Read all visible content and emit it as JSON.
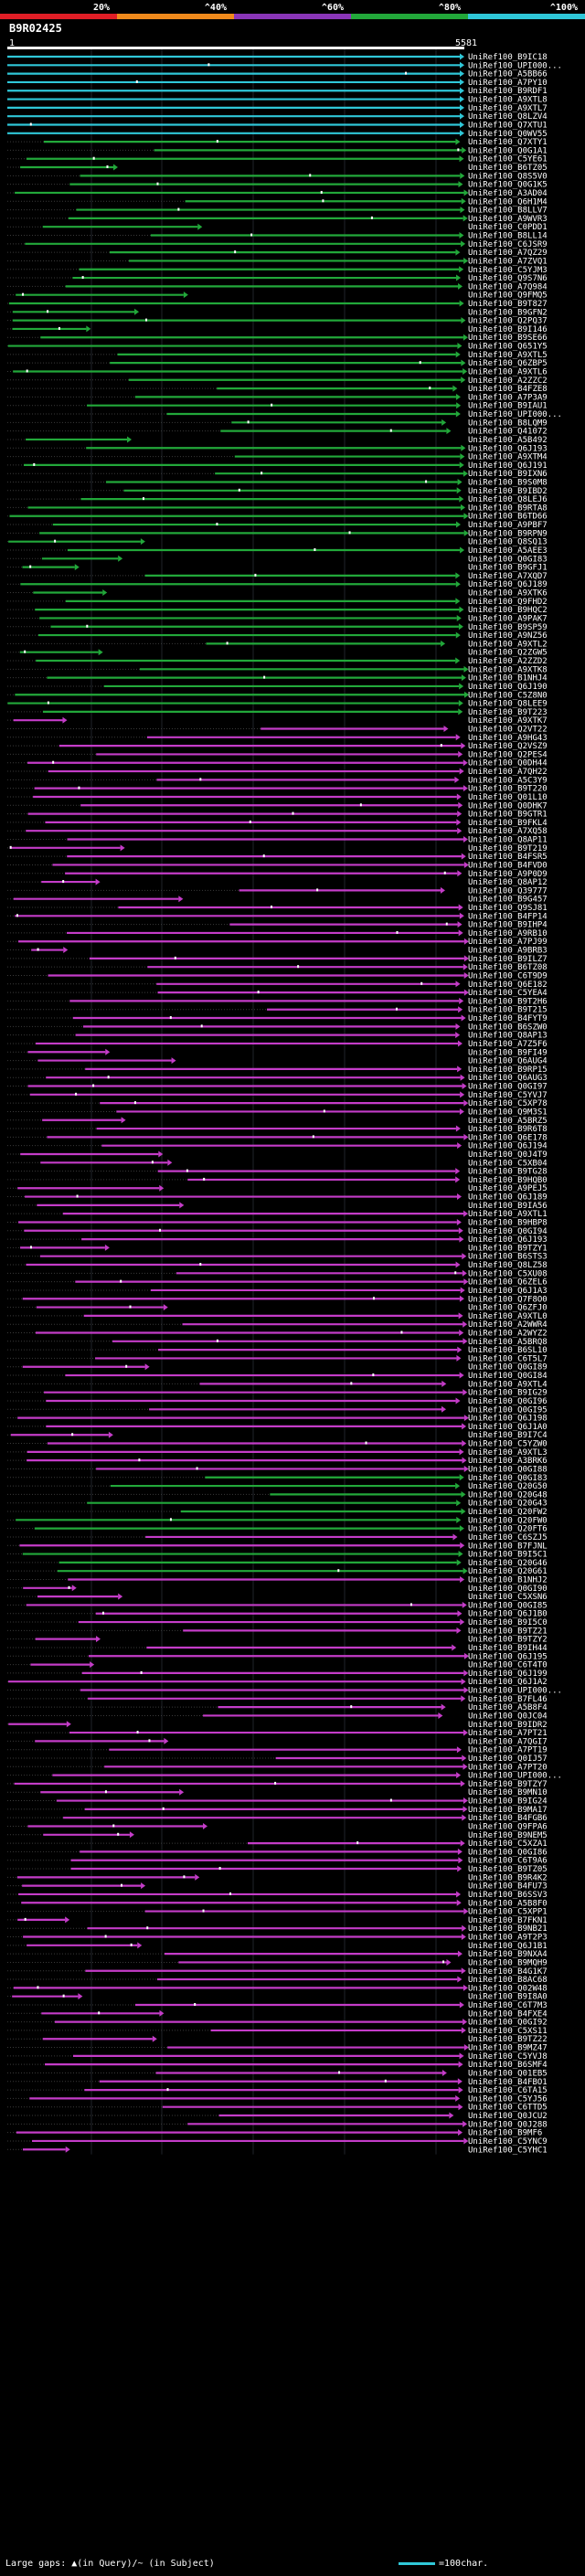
{
  "legend": {
    "segments": [
      {
        "label": "20%",
        "color": "#e01e26"
      },
      {
        "label": "^40%",
        "color": "#f08a1c"
      },
      {
        "label": "^60%",
        "color": "#8a36b8"
      },
      {
        "label": "^80%",
        "color": "#22a83a"
      },
      {
        "label": "^100%",
        "color": "#2fc7d8"
      }
    ]
  },
  "query_id": "B9R02425",
  "axis": {
    "start": "1",
    "end": "5581"
  },
  "colors": {
    "cyan": "#2fc7d8",
    "green": "#22a83a",
    "magenta": "#c43cc8",
    "query": "#ffffff"
  },
  "hits": [
    {
      "label": "UniRef100_B9IC18",
      "c": "cyan"
    },
    {
      "label": "UniRef100_UPI000...",
      "c": "cyan"
    },
    {
      "label": "UniRef100_A5BB66",
      "c": "cyan"
    },
    {
      "label": "UniRef100_A7PY10",
      "c": "cyan"
    },
    {
      "label": "UniRef100_B9RDF1",
      "c": "cyan"
    },
    {
      "label": "UniRef100_A9XTL8",
      "c": "cyan"
    },
    {
      "label": "UniRef100_A9XTL7",
      "c": "cyan"
    },
    {
      "label": "UniRef100_Q8LZV4",
      "c": "cyan"
    },
    {
      "label": "UniRef100_Q7XTU1",
      "c": "cyan"
    },
    {
      "label": "UniRef100_Q0WV55",
      "c": "cyan"
    },
    {
      "label": "UniRef100_Q7XTY1",
      "c": "green"
    },
    {
      "label": "UniRef100_Q0G1A1",
      "c": "green"
    },
    {
      "label": "UniRef100_C5YE61",
      "c": "green"
    },
    {
      "label": "UniRef100_B6TZ05",
      "c": "green"
    },
    {
      "label": "UniRef100_Q8S5V0",
      "c": "green"
    },
    {
      "label": "UniRef100_Q0G1K5",
      "c": "green"
    },
    {
      "label": "UniRef100_A3AD04",
      "c": "green"
    },
    {
      "label": "UniRef100_Q6H1M4",
      "c": "green"
    },
    {
      "label": "UniRef100_B8LLV7",
      "c": "green"
    },
    {
      "label": "UniRef100_A9WVR3",
      "c": "green"
    },
    {
      "label": "UniRef100_C0PDD1",
      "c": "green"
    },
    {
      "label": "UniRef100_B8LL14",
      "c": "green"
    },
    {
      "label": "UniRef100_C6JSR9",
      "c": "green"
    },
    {
      "label": "UniRef100_A7QZ29",
      "c": "green"
    },
    {
      "label": "UniRef100_A7ZVQ1",
      "c": "green"
    },
    {
      "label": "UniRef100_C5YJM3",
      "c": "green"
    },
    {
      "label": "UniRef100_Q9S7N6",
      "c": "green"
    },
    {
      "label": "UniRef100_A7Q984",
      "c": "green"
    },
    {
      "label": "UniRef100_Q9FMQ5",
      "c": "green"
    },
    {
      "label": "UniRef100_B9T827",
      "c": "green"
    },
    {
      "label": "UniRef100_B9GFN2",
      "c": "green"
    },
    {
      "label": "UniRef100_Q2PQ37",
      "c": "green"
    },
    {
      "label": "UniRef100_B9I146",
      "c": "green"
    },
    {
      "label": "UniRef100_B9SE66",
      "c": "green"
    },
    {
      "label": "UniRef100_Q651Y5",
      "c": "green"
    },
    {
      "label": "UniRef100_A9XTL5",
      "c": "green"
    },
    {
      "label": "UniRef100_Q6ZBP5",
      "c": "green"
    },
    {
      "label": "UniRef100_A9XTL6",
      "c": "green"
    },
    {
      "label": "UniRef100_A2ZZC2",
      "c": "green"
    },
    {
      "label": "UniRef100_B4FZE8",
      "c": "green"
    },
    {
      "label": "UniRef100_A7P3A9",
      "c": "green"
    },
    {
      "label": "UniRef100_B9IAU1",
      "c": "green"
    },
    {
      "label": "UniRef100_UPI000...",
      "c": "green"
    },
    {
      "label": "UniRef100_B8LQM9",
      "c": "green"
    },
    {
      "label": "UniRef100_Q41072",
      "c": "green"
    },
    {
      "label": "UniRef100_A5B492",
      "c": "green"
    },
    {
      "label": "UniRef100_Q6J193",
      "c": "green"
    },
    {
      "label": "UniRef100_A9XTM4",
      "c": "green"
    },
    {
      "label": "UniRef100_Q6J191",
      "c": "green"
    },
    {
      "label": "UniRef100_B9IXN6",
      "c": "green"
    },
    {
      "label": "UniRef100_B9S0M8",
      "c": "green"
    },
    {
      "label": "UniRef100_B9IBD2",
      "c": "green"
    },
    {
      "label": "UniRef100_Q8LEJ6",
      "c": "green"
    },
    {
      "label": "UniRef100_B9RTA8",
      "c": "green"
    },
    {
      "label": "UniRef100_B6TD66",
      "c": "green"
    },
    {
      "label": "UniRef100_A9PBF7",
      "c": "green"
    },
    {
      "label": "UniRef100_B9RPN9",
      "c": "green"
    },
    {
      "label": "UniRef100_Q8SQ13",
      "c": "green"
    },
    {
      "label": "UniRef100_A5AEE3",
      "c": "green"
    },
    {
      "label": "UniRef100_Q0GI83",
      "c": "green"
    },
    {
      "label": "UniRef100_B9GFJ1",
      "c": "green"
    },
    {
      "label": "UniRef100_A7XQD7",
      "c": "green"
    },
    {
      "label": "UniRef100_Q6J189",
      "c": "green"
    },
    {
      "label": "UniRef100_A9XTK6",
      "c": "green"
    },
    {
      "label": "UniRef100_Q9FHD2",
      "c": "green"
    },
    {
      "label": "UniRef100_B9HQC2",
      "c": "green"
    },
    {
      "label": "UniRef100_A9PAK7",
      "c": "green"
    },
    {
      "label": "UniRef100_B9SP59",
      "c": "green"
    },
    {
      "label": "UniRef100_A9NZ56",
      "c": "green"
    },
    {
      "label": "UniRef100_A9XTL2",
      "c": "green"
    },
    {
      "label": "UniRef100_Q2ZGW5",
      "c": "green"
    },
    {
      "label": "UniRef100_A2ZZD2",
      "c": "green"
    },
    {
      "label": "UniRef100_A9XTK8",
      "c": "green"
    },
    {
      "label": "UniRef100_B1NHJ4",
      "c": "green"
    },
    {
      "label": "UniRef100_Q6J190",
      "c": "green"
    },
    {
      "label": "UniRef100_C5Z8N0",
      "c": "green"
    },
    {
      "label": "UniRef100_Q8LEE9",
      "c": "green"
    },
    {
      "label": "UniRef100_B9T223",
      "c": "green"
    },
    {
      "label": "UniRef100_A9XTK7",
      "c": "magenta"
    },
    {
      "label": "UniRef100_Q2VT22",
      "c": "magenta"
    },
    {
      "label": "UniRef100_A9HG43",
      "c": "magenta"
    },
    {
      "label": "UniRef100_Q2VSZ9",
      "c": "magenta"
    },
    {
      "label": "UniRef100_Q2PES4",
      "c": "magenta"
    },
    {
      "label": "UniRef100_Q0DH44",
      "c": "magenta"
    },
    {
      "label": "UniRef100_A7QH22",
      "c": "magenta"
    },
    {
      "label": "UniRef100_A5C3Y9",
      "c": "magenta"
    },
    {
      "label": "UniRef100_B9T220",
      "c": "magenta"
    },
    {
      "label": "UniRef100_Q01L10",
      "c": "magenta"
    },
    {
      "label": "UniRef100_Q0DHK7",
      "c": "magenta"
    },
    {
      "label": "UniRef100_B9GTR1",
      "c": "magenta"
    },
    {
      "label": "UniRef100_B9FKL4",
      "c": "magenta"
    },
    {
      "label": "UniRef100_A7XQ58",
      "c": "magenta"
    },
    {
      "label": "UniRef100_Q8AP11",
      "c": "magenta"
    },
    {
      "label": "UniRef100_B9T219",
      "c": "magenta"
    },
    {
      "label": "UniRef100_B4FSR5",
      "c": "magenta"
    },
    {
      "label": "UniRef100_B4FVD0",
      "c": "magenta"
    },
    {
      "label": "UniRef100_A9P0D9",
      "c": "magenta"
    },
    {
      "label": "UniRef100_Q8AP12",
      "c": "magenta"
    },
    {
      "label": "UniRef100_Q39777",
      "c": "magenta"
    },
    {
      "label": "UniRef100_B9G457",
      "c": "magenta"
    },
    {
      "label": "UniRef100_Q9SJ81",
      "c": "magenta"
    },
    {
      "label": "UniRef100_B4FP14",
      "c": "magenta"
    },
    {
      "label": "UniRef100_B9IHP4",
      "c": "magenta"
    },
    {
      "label": "UniRef100_A9RB10",
      "c": "magenta"
    },
    {
      "label": "UniRef100_A7PJ99",
      "c": "magenta"
    },
    {
      "label": "UniRef100_A9BRB3",
      "c": "magenta"
    },
    {
      "label": "UniRef100_B9ILZ7",
      "c": "magenta"
    },
    {
      "label": "UniRef100_B6TZ08",
      "c": "magenta"
    },
    {
      "label": "UniRef100_C6T9D9",
      "c": "magenta"
    },
    {
      "label": "UniRef100_Q6E182",
      "c": "magenta"
    },
    {
      "label": "UniRef100_C5YEA4",
      "c": "magenta"
    },
    {
      "label": "UniRef100_B9T2H6",
      "c": "magenta"
    },
    {
      "label": "UniRef100_B9T215",
      "c": "magenta"
    },
    {
      "label": "UniRef100_B4FYT9",
      "c": "magenta"
    },
    {
      "label": "UniRef100_B6SZW0",
      "c": "magenta"
    },
    {
      "label": "UniRef100_Q8AP13",
      "c": "magenta"
    },
    {
      "label": "UniRef100_A7Z5F6",
      "c": "magenta"
    },
    {
      "label": "UniRef100_B9FI49",
      "c": "magenta"
    },
    {
      "label": "UniRef100_Q6AUG4",
      "c": "magenta"
    },
    {
      "label": "UniRef100_B9RP15",
      "c": "magenta"
    },
    {
      "label": "UniRef100_Q6AUG3",
      "c": "magenta"
    },
    {
      "label": "UniRef100_Q0GI97",
      "c": "magenta"
    },
    {
      "label": "UniRef100_C5YVJ7",
      "c": "magenta"
    },
    {
      "label": "UniRef100_C5XP78",
      "c": "magenta"
    },
    {
      "label": "UniRef100_Q9M3S1",
      "c": "magenta"
    },
    {
      "label": "UniRef100_A5BRZ5",
      "c": "magenta"
    },
    {
      "label": "UniRef100_B9R6T8",
      "c": "magenta"
    },
    {
      "label": "UniRef100_Q6E178",
      "c": "magenta"
    },
    {
      "label": "UniRef100_Q6J194",
      "c": "magenta"
    },
    {
      "label": "UniRef100_Q0J4T9",
      "c": "magenta"
    },
    {
      "label": "UniRef100_C5XB04",
      "c": "magenta"
    },
    {
      "label": "UniRef100_B9TG28",
      "c": "magenta"
    },
    {
      "label": "UniRef100_B9HQB0",
      "c": "magenta"
    },
    {
      "label": "UniRef100_A9PEJ5",
      "c": "magenta"
    },
    {
      "label": "UniRef100_Q6J189",
      "c": "magenta"
    },
    {
      "label": "UniRef100_B9IA56",
      "c": "magenta"
    },
    {
      "label": "UniRef100_A9XTL1",
      "c": "magenta"
    },
    {
      "label": "UniRef100_B9HBP8",
      "c": "magenta"
    },
    {
      "label": "UniRef100_Q0GI94",
      "c": "magenta"
    },
    {
      "label": "UniRef100_Q6J193",
      "c": "magenta"
    },
    {
      "label": "UniRef100_B9TZY1",
      "c": "magenta"
    },
    {
      "label": "UniRef100_B6STS3",
      "c": "magenta"
    },
    {
      "label": "UniRef100_Q8LZ58",
      "c": "magenta"
    },
    {
      "label": "UniRef100_C5XU08",
      "c": "magenta"
    },
    {
      "label": "UniRef100_Q6ZEL6",
      "c": "magenta"
    },
    {
      "label": "UniRef100_Q6J1A3",
      "c": "magenta"
    },
    {
      "label": "UniRef100_Q7F8O0",
      "c": "magenta"
    },
    {
      "label": "UniRef100_Q6ZFJ0",
      "c": "magenta"
    },
    {
      "label": "UniRef100_A9XTL0",
      "c": "magenta"
    },
    {
      "label": "UniRef100_A2WWR4",
      "c": "magenta"
    },
    {
      "label": "UniRef100_A2WYZ2",
      "c": "magenta"
    },
    {
      "label": "UniRef100_A5BRQ8",
      "c": "magenta"
    },
    {
      "label": "UniRef100_B6SL10",
      "c": "magenta"
    },
    {
      "label": "UniRef100_C6T5L7",
      "c": "magenta"
    },
    {
      "label": "UniRef100_Q0GI89",
      "c": "magenta"
    },
    {
      "label": "UniRef100_Q0GI84",
      "c": "magenta"
    },
    {
      "label": "UniRef100_A9XTL4",
      "c": "magenta"
    },
    {
      "label": "UniRef100_B9IG29",
      "c": "magenta"
    },
    {
      "label": "UniRef100_Q0GI96",
      "c": "magenta"
    },
    {
      "label": "UniRef100_Q0GI95",
      "c": "magenta"
    },
    {
      "label": "UniRef100_Q6J198",
      "c": "magenta"
    },
    {
      "label": "UniRef100_Q6J1A0",
      "c": "magenta"
    },
    {
      "label": "UniRef100_B9I7C4",
      "c": "magenta"
    },
    {
      "label": "UniRef100_C5YZW0",
      "c": "magenta"
    },
    {
      "label": "UniRef100_A9XTL3",
      "c": "magenta"
    },
    {
      "label": "UniRef100_A3BRK6",
      "c": "magenta"
    },
    {
      "label": "UniRef100_Q0GI88",
      "c": "magenta"
    },
    {
      "label": "UniRef100_Q0GI83",
      "c": "green"
    },
    {
      "label": "UniRef100_Q20G50",
      "c": "green"
    },
    {
      "label": "UniRef100_Q20G48",
      "c": "green"
    },
    {
      "label": "UniRef100_Q20G43",
      "c": "green"
    },
    {
      "label": "UniRef100_Q20FW2",
      "c": "green"
    },
    {
      "label": "UniRef100_Q20FW0",
      "c": "green"
    },
    {
      "label": "UniRef100_Q20FT6",
      "c": "green"
    },
    {
      "label": "UniRef100_C6SZJ5",
      "c": "magenta"
    },
    {
      "label": "UniRef100_B7FJNL",
      "c": "magenta"
    },
    {
      "label": "UniRef100_B9I5C1",
      "c": "green"
    },
    {
      "label": "UniRef100_Q20G46",
      "c": "green"
    },
    {
      "label": "UniRef100_Q20G61",
      "c": "green"
    },
    {
      "label": "UniRef100_B1NHJ2",
      "c": "magenta"
    },
    {
      "label": "UniRef100_Q0GI90",
      "c": "magenta"
    },
    {
      "label": "UniRef100_C5XSN6",
      "c": "magenta"
    },
    {
      "label": "UniRef100_Q0GI85",
      "c": "magenta"
    },
    {
      "label": "UniRef100_Q6J1B0",
      "c": "magenta"
    },
    {
      "label": "UniRef100_B9I5C0",
      "c": "magenta"
    },
    {
      "label": "UniRef100_B9TZ21",
      "c": "magenta"
    },
    {
      "label": "UniRef100_B9TZY2",
      "c": "magenta"
    },
    {
      "label": "UniRef100_B9IH44",
      "c": "magenta"
    },
    {
      "label": "UniRef100_Q6J195",
      "c": "magenta"
    },
    {
      "label": "UniRef100_C6T4T0",
      "c": "magenta"
    },
    {
      "label": "UniRef100_Q6J199",
      "c": "magenta"
    },
    {
      "label": "UniRef100_Q6J1A2",
      "c": "magenta"
    },
    {
      "label": "UniRef100_UPI000...",
      "c": "magenta"
    },
    {
      "label": "UniRef100_B7FL46",
      "c": "magenta"
    },
    {
      "label": "UniRef100_A5B8F4",
      "c": "magenta"
    },
    {
      "label": "UniRef100_Q0JC04",
      "c": "magenta"
    },
    {
      "label": "UniRef100_B9IDR2",
      "c": "magenta"
    },
    {
      "label": "UniRef100_A7PT21",
      "c": "magenta"
    },
    {
      "label": "UniRef100_A7QGI7",
      "c": "magenta"
    },
    {
      "label": "UniRef100_A7PT19",
      "c": "magenta"
    },
    {
      "label": "UniRef100_Q0IJ57",
      "c": "magenta"
    },
    {
      "label": "UniRef100_A7PT20",
      "c": "magenta"
    },
    {
      "label": "UniRef100_UPI000...",
      "c": "magenta"
    },
    {
      "label": "UniRef100_B9TZY7",
      "c": "magenta"
    },
    {
      "label": "UniRef100_B9MN10",
      "c": "magenta"
    },
    {
      "label": "UniRef100_B9IG24",
      "c": "magenta"
    },
    {
      "label": "UniRef100_B9MA17",
      "c": "magenta"
    },
    {
      "label": "UniRef100_B4FGB6",
      "c": "magenta"
    },
    {
      "label": "UniRef100_Q9FPA6",
      "c": "magenta"
    },
    {
      "label": "UniRef100_B9NEM5",
      "c": "magenta"
    },
    {
      "label": "UniRef100_C5XZA1",
      "c": "magenta"
    },
    {
      "label": "UniRef100_Q0GI86",
      "c": "magenta"
    },
    {
      "label": "UniRef100_C6T9A6",
      "c": "magenta"
    },
    {
      "label": "UniRef100_B9TZ05",
      "c": "magenta"
    },
    {
      "label": "UniRef100_B9R4K2",
      "c": "magenta"
    },
    {
      "label": "UniRef100_B4FU73",
      "c": "magenta"
    },
    {
      "label": "UniRef100_B6SSV3",
      "c": "magenta"
    },
    {
      "label": "UniRef100_A5B8F0",
      "c": "magenta"
    },
    {
      "label": "UniRef100_C5XPP1",
      "c": "magenta"
    },
    {
      "label": "UniRef100_B7FKN1",
      "c": "magenta"
    },
    {
      "label": "UniRef100_B9NB21",
      "c": "magenta"
    },
    {
      "label": "UniRef100_A9T2P3",
      "c": "magenta"
    },
    {
      "label": "UniRef100_Q6J1B1",
      "c": "magenta"
    },
    {
      "label": "UniRef100_B9NXA4",
      "c": "magenta"
    },
    {
      "label": "UniRef100_B9MQH9",
      "c": "magenta"
    },
    {
      "label": "UniRef100_B4G1K7",
      "c": "magenta"
    },
    {
      "label": "UniRef100_B8AC68",
      "c": "magenta"
    },
    {
      "label": "UniRef100_Q02W48",
      "c": "magenta"
    },
    {
      "label": "UniRef100_B9I8A0",
      "c": "magenta"
    },
    {
      "label": "UniRef100_C6T7M3",
      "c": "magenta"
    },
    {
      "label": "UniRef100_B4FXE4",
      "c": "magenta"
    },
    {
      "label": "UniRef100_Q0GI92",
      "c": "magenta"
    },
    {
      "label": "UniRef100_C5XS11",
      "c": "magenta"
    },
    {
      "label": "UniRef100_B9TZ22",
      "c": "magenta"
    },
    {
      "label": "UniRef100_B9MZ47",
      "c": "magenta"
    },
    {
      "label": "UniRef100_C5YVJ8",
      "c": "magenta"
    },
    {
      "label": "UniRef100_B6SMF4",
      "c": "magenta"
    },
    {
      "label": "UniRef100_Q01EB5",
      "c": "magenta"
    },
    {
      "label": "UniRef100_B4FBO1",
      "c": "magenta"
    },
    {
      "label": "UniRef100_C6TA15",
      "c": "magenta"
    },
    {
      "label": "UniRef100_C5YJ56",
      "c": "magenta"
    },
    {
      "label": "UniRef100_C6TTD5",
      "c": "magenta"
    },
    {
      "label": "UniRef100_Q0JCU2",
      "c": "magenta"
    },
    {
      "label": "UniRef100_Q0J288",
      "c": "magenta"
    },
    {
      "label": "UniRef100_B9MF6",
      "c": "magenta"
    },
    {
      "label": "UniRef100_C5YNC9",
      "c": "magenta"
    },
    {
      "label": "UniRef100_C5YHC1",
      "c": "magenta"
    }
  ],
  "footer": {
    "left": "Large gaps: ▲(in Query)/~ (in Subject)",
    "right": "=100char."
  }
}
